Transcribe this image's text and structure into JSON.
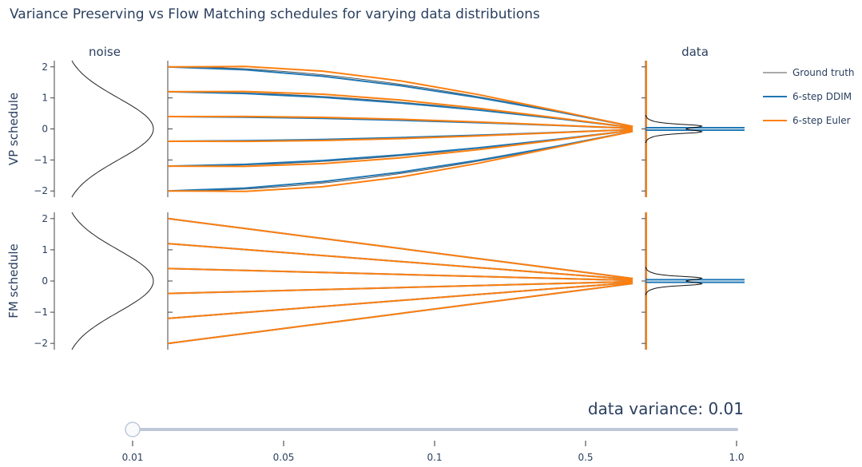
{
  "chart_data": {
    "type": "line",
    "title": "Variance Preserving vs Flow Matching schedules for varying data distributions",
    "column_titles": {
      "noise": "noise",
      "data": "data"
    },
    "legend": [
      {
        "name": "Ground truth",
        "color": "#555555"
      },
      {
        "name": "6-step DDIM",
        "color": "#1f77b4"
      },
      {
        "name": "6-step Euler",
        "color": "#ff7f0e"
      }
    ],
    "yticks": [
      2,
      1,
      0,
      -1,
      -2
    ],
    "ytick_labels": [
      "2",
      "1",
      "0",
      "−1",
      "−2"
    ],
    "ylim": [
      -2.2,
      2.2
    ],
    "start_values": [
      2.0,
      1.2,
      0.4,
      -0.4,
      -1.2,
      -2.0
    ],
    "final_values": [
      0.08,
      0.05,
      0.02,
      -0.02,
      -0.05,
      -0.08
    ],
    "panels": [
      {
        "ylabel": "VP schedule",
        "schedule": "vp"
      },
      {
        "ylabel": "FM schedule",
        "schedule": "fm"
      }
    ],
    "slider": {
      "label": "data variance",
      "current": "0.01",
      "steps": [
        "0.01",
        "0.05",
        "0.1",
        "0.5",
        "1.0"
      ],
      "active_index": 0
    }
  }
}
